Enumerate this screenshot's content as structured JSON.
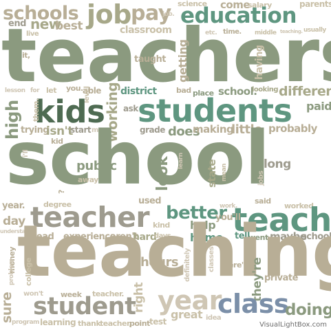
{
  "palette": {
    "olive": "#a7a889",
    "sage": "#8b9a7f",
    "grey": "#9e9b8e",
    "taupe": "#b8ae96",
    "beige": "#c9c0a8",
    "teal": "#5e9680",
    "darkgreen": "#4e6b52",
    "blue": "#7b8fa8",
    "light": "#cfc6b4"
  },
  "watermark": "VisualLightBox.com",
  "words": [
    {
      "text": "schools",
      "color": "#b8ae96"
    },
    {
      "text": "job",
      "color": "#a7a889"
    },
    {
      "text": "pay",
      "color": "#b8ae96"
    },
    {
      "text": "science",
      "color": "#c9c0a8"
    },
    {
      "text": "come",
      "color": "#b8ae96"
    },
    {
      "text": "salary",
      "color": "#c9c0a8"
    },
    {
      "text": "parents",
      "color": "#c9c0a8"
    },
    {
      "text": "end",
      "color": "#9e9b8e"
    },
    {
      "text": "new",
      "color": "#a7a889"
    },
    {
      "text": "best",
      "color": "#b8ae96"
    },
    {
      "text": "classroom",
      "color": "#c9c0a8"
    },
    {
      "text": "job.",
      "color": "#cfc6b4"
    },
    {
      "text": "education",
      "color": "#5e9680"
    },
    {
      "text": "usually",
      "color": "#c9c0a8"
    },
    {
      "text": "live",
      "color": "#c9c0a8"
    },
    {
      "text": "etc.",
      "color": "#cfc6b4"
    },
    {
      "text": "time.",
      "color": "#b8ae96"
    },
    {
      "text": "middle",
      "color": "#c9c0a8"
    },
    {
      "text": "teaching.",
      "color": "#cfc6b4"
    },
    {
      "text": "teachers",
      "color": "#8b9a7f"
    },
    {
      "text": "it,",
      "color": "#b8ae96"
    },
    {
      "text": "taught",
      "color": "#b8ae96"
    },
    {
      "text": "getting",
      "color": "#b8ae96"
    },
    {
      "text": "having",
      "color": "#c9c0a8"
    },
    {
      "text": "lesson",
      "color": "#cfc6b4"
    },
    {
      "text": "for",
      "color": "#cfc6b4"
    },
    {
      "text": "let",
      "color": "#c9c0a8"
    },
    {
      "text": "you.",
      "color": "#b8ae96"
    },
    {
      "text": "able",
      "color": "#b8ae96"
    },
    {
      "text": "level",
      "color": "#c9c0a8"
    },
    {
      "text": "district",
      "color": "#5e9680"
    },
    {
      "text": "bad",
      "color": "#b8ae96"
    },
    {
      "text": "place",
      "color": "#8b9a7f"
    },
    {
      "text": "school.",
      "color": "#8b9a7f"
    },
    {
      "text": "looking",
      "color": "#a7a889"
    },
    {
      "text": "different",
      "color": "#a7a889"
    },
    {
      "text": "kids",
      "color": "#4e6b52"
    },
    {
      "text": "students",
      "color": "#5e9680"
    },
    {
      "text": "paid",
      "color": "#8b9a7f"
    },
    {
      "text": "high",
      "color": "#8b9a7f"
    },
    {
      "text": "them.",
      "color": "#c9c0a8"
    },
    {
      "text": "working",
      "color": "#a7a889"
    },
    {
      "text": "ask",
      "color": "#9e9b8e"
    },
    {
      "text": "grade",
      "color": "#9e9b8e"
    },
    {
      "text": "does",
      "color": "#8b9a7f"
    },
    {
      "text": "making",
      "color": "#b8ae96"
    },
    {
      "text": "little",
      "color": "#b8ae96"
    },
    {
      "text": "probably",
      "color": "#b8ae96"
    },
    {
      "text": "trying",
      "color": "#b8ae96"
    },
    {
      "text": "isn't",
      "color": "#a7a889"
    },
    {
      "text": "start",
      "color": "#9e9b8e"
    },
    {
      "text": "me.",
      "color": "#cfc6b4"
    },
    {
      "text": "kid",
      "color": "#b8ae96"
    },
    {
      "text": "school",
      "color": "#8b9a7f"
    },
    {
      "text": "i'll",
      "color": "#cfc6b4"
    },
    {
      "text": "learn",
      "color": "#cfc6b4"
    },
    {
      "text": "long",
      "color": "#9e9b8e"
    },
    {
      "text": "public",
      "color": "#8b9a7f"
    },
    {
      "text": "look",
      "color": "#8b9a7f"
    },
    {
      "text": "away",
      "color": "#c9c0a8"
    },
    {
      "text": "state",
      "color": "#a7a889"
    },
    {
      "text": "mean",
      "color": "#c9c0a8"
    },
    {
      "text": "jobs",
      "color": "#cfc6b4"
    },
    {
      "text": "used",
      "color": "#b8ae96"
    },
    {
      "text": "said",
      "color": "#b8ae96"
    },
    {
      "text": "year.",
      "color": "#b8ae96"
    },
    {
      "text": "degree",
      "color": "#c9c0a8"
    },
    {
      "text": "better",
      "color": "#5e9680"
    },
    {
      "text": "work.",
      "color": "#cfc6b4"
    },
    {
      "text": "worked",
      "color": "#c9c0a8"
    },
    {
      "text": "teacher",
      "color": "#9e9b8e"
    },
    {
      "text": "teach",
      "color": "#5e9680"
    },
    {
      "text": "day",
      "color": "#b8ae96"
    },
    {
      "text": "kind",
      "color": "#c9c0a8"
    },
    {
      "text": "help",
      "color": "#8b9a7f"
    },
    {
      "text": "you'll",
      "color": "#b8ae96"
    },
    {
      "text": "understand",
      "color": "#cfc6b4"
    },
    {
      "text": "read",
      "color": "#b8ae96"
    },
    {
      "text": "experience",
      "color": "#b8ae96"
    },
    {
      "text": "aren't",
      "color": "#b8ae96"
    },
    {
      "text": "hard",
      "color": "#a7a889"
    },
    {
      "text": "days",
      "color": "#c9c0a8"
    },
    {
      "text": "home",
      "color": "#5e9680"
    },
    {
      "text": "tell",
      "color": "#5e9680"
    },
    {
      "text": "went",
      "color": "#8b9a7f"
    },
    {
      "text": "maybe",
      "color": "#9e9b8e"
    },
    {
      "text": "school,",
      "color": "#9e9b8e"
    },
    {
      "text": "teaching",
      "color": "#b8ae96"
    },
    {
      "text": "hours",
      "color": "#b8ae96"
    },
    {
      "text": "money",
      "color": "#b8ae96"
    },
    {
      "text": "problem",
      "color": "#cfc6b4"
    },
    {
      "text": "college",
      "color": "#c9c0a8"
    },
    {
      "text": "definitely",
      "color": "#cfc6b4"
    },
    {
      "text": "classes",
      "color": "#cfc6b4"
    },
    {
      "text": "there's",
      "color": "#b8ae96"
    },
    {
      "text": "they're",
      "color": "#8b9a7f"
    },
    {
      "text": "private",
      "color": "#b8ae96"
    },
    {
      "text": "sure",
      "color": "#b8ae96"
    },
    {
      "text": "won't",
      "color": "#cfc6b4"
    },
    {
      "text": "week",
      "color": "#b8ae96"
    },
    {
      "text": "teacher.",
      "color": "#c9c0a8"
    },
    {
      "text": "right",
      "color": "#c9c0a8"
    },
    {
      "text": "year",
      "color": "#cfc6b4"
    },
    {
      "text": "class",
      "color": "#7b8fa8"
    },
    {
      "text": "doing",
      "color": "#8b9a7f"
    },
    {
      "text": "student",
      "color": "#9e9b8e"
    },
    {
      "text": "great",
      "color": "#c9c0a8"
    },
    {
      "text": "idea",
      "color": "#cfc6b4"
    },
    {
      "text": "program",
      "color": "#cfc6b4"
    },
    {
      "text": "learning",
      "color": "#c9c0a8"
    },
    {
      "text": "thank",
      "color": "#c9c0a8"
    },
    {
      "text": "teacher,",
      "color": "#c9c0a8"
    },
    {
      "text": "point",
      "color": "#b8ae96"
    },
    {
      "text": "test",
      "color": "#c9c0a8"
    },
    {
      "text": "?",
      "color": "#b8ae96"
    }
  ]
}
